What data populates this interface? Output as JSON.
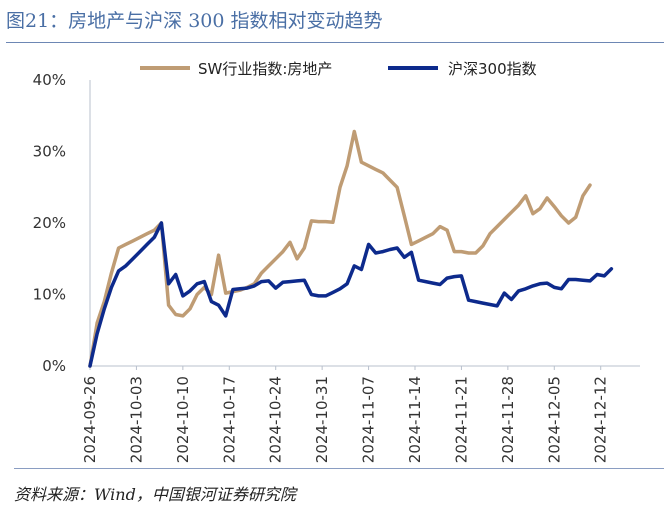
{
  "header": {
    "title": "图21：房地产与沪深 300 指数相对变动趋势"
  },
  "footer": {
    "source": "资料来源：Wind，中国银河证券研究院"
  },
  "chart_data": {
    "type": "line",
    "title": "房地产与沪深 300 指数相对变动趋势",
    "xlabel": "",
    "ylabel": "",
    "ylim": [
      0,
      40
    ],
    "yticks": [
      "0%",
      "10%",
      "20%",
      "30%",
      "40%"
    ],
    "xticks": [
      "2024-09-26",
      "2024-10-03",
      "2024-10-10",
      "2024-10-17",
      "2024-10-24",
      "2024-10-31",
      "2024-11-07",
      "2024-11-14",
      "2024-11-21",
      "2024-11-28",
      "2024-12-05",
      "2024-12-12"
    ],
    "x": [
      0,
      1,
      2,
      3,
      4,
      5,
      6,
      7,
      8,
      9,
      10,
      11,
      12,
      13,
      14,
      15,
      16,
      17,
      18,
      19,
      20,
      21,
      22,
      23,
      24,
      25,
      26,
      27,
      28,
      29,
      30,
      31,
      32,
      33,
      34,
      35,
      36,
      37,
      38,
      39,
      40,
      41,
      42,
      43,
      44,
      45,
      46,
      47,
      48,
      49,
      50,
      51,
      52,
      53,
      54,
      55,
      56,
      57,
      58,
      59,
      60,
      61,
      62,
      63,
      64,
      65,
      66,
      67,
      68,
      69,
      70,
      71,
      72,
      73,
      74,
      75,
      76,
      77
    ],
    "series": [
      {
        "name": "SW行业指数:房地产",
        "color": "#bf9c74",
        "values": [
          0,
          6,
          9,
          13,
          16.5,
          17,
          17.5,
          18,
          18.5,
          19,
          20,
          8.5,
          7.2,
          7,
          8,
          10,
          11,
          10,
          15.5,
          10.2,
          10.4,
          10.6,
          11,
          11.5,
          13,
          14,
          15,
          16,
          17.3,
          15,
          16.5,
          20.3,
          20.2,
          20.2,
          20.1,
          25,
          28,
          32.8,
          28.5,
          28,
          27.5,
          27,
          26,
          25,
          21,
          17,
          17.5,
          18,
          18.5,
          19.5,
          19,
          16,
          16,
          15.8,
          15.8,
          16.8,
          18.5,
          19.5,
          20.5,
          21.5,
          22.5,
          23.8,
          21.3,
          22,
          23.5,
          22.3,
          21,
          20,
          20.8,
          23.8,
          25.3,
          null,
          null,
          null,
          null,
          null,
          null,
          null
        ]
      },
      {
        "name": "沪深300指数",
        "color": "#0d2a8c",
        "values": [
          0,
          4.5,
          8,
          11,
          13.3,
          14,
          15,
          16,
          17,
          18,
          20,
          11.5,
          12.8,
          9.8,
          10.5,
          11.5,
          11.8,
          9,
          8.5,
          7,
          10.7,
          10.8,
          10.9,
          11.2,
          11.8,
          11.9,
          10.9,
          11.7,
          11.8,
          11.9,
          12,
          10,
          9.8,
          9.8,
          10.3,
          10.8,
          11.5,
          14,
          13.5,
          17,
          15.8,
          16,
          16.3,
          16.5,
          15.2,
          15.9,
          12,
          11.8,
          11.6,
          11.4,
          12.3,
          12.5,
          12.6,
          9.2,
          9,
          8.8,
          8.6,
          8.4,
          10.2,
          9.3,
          10.5,
          10.8,
          11.2,
          11.5,
          11.6,
          11,
          10.8,
          12.1,
          12.1,
          12,
          11.9,
          12.8,
          12.6,
          13.6,
          null,
          null,
          null,
          null
        ]
      }
    ],
    "legend": {
      "position": "top"
    }
  }
}
